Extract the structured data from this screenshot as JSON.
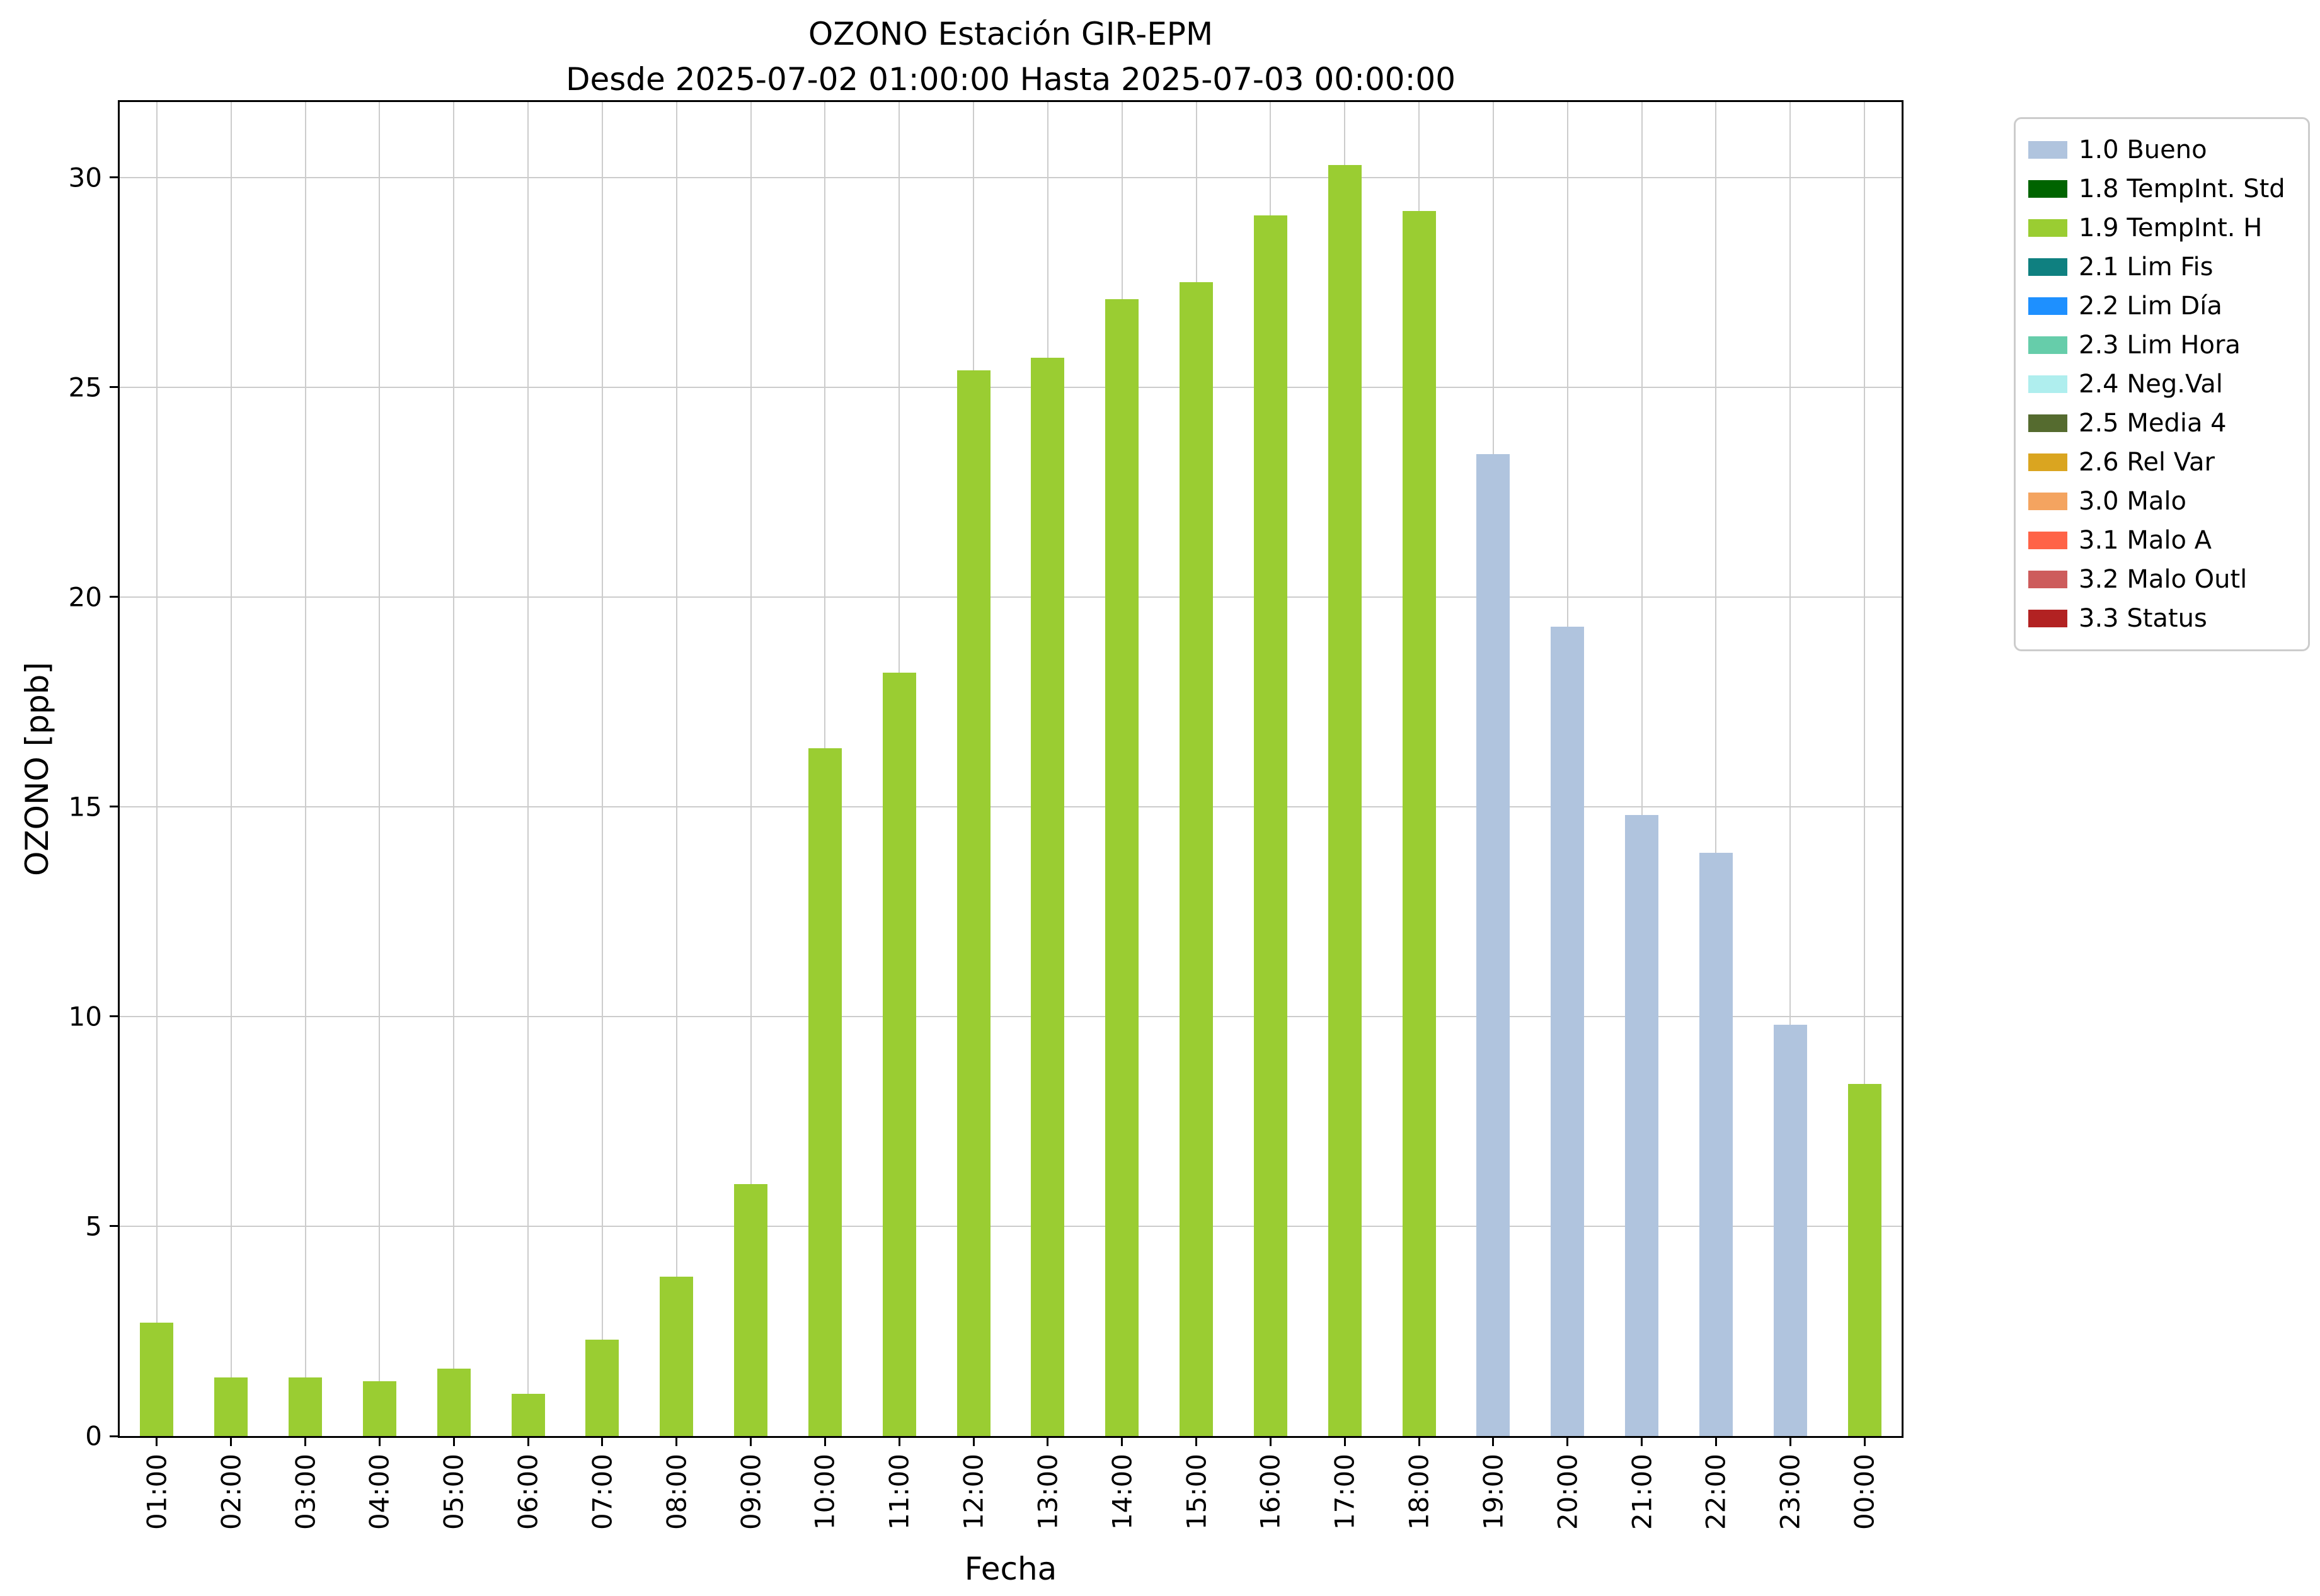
{
  "chart_data": {
    "type": "bar",
    "title": "OZONO Estación GIR-EPM",
    "subtitle": "Desde 2025-07-02 01:00:00 Hasta 2025-07-03 00:00:00",
    "xlabel": "Fecha",
    "ylabel": "OZONO [ppb]",
    "ylim": [
      0,
      31.8
    ],
    "yticks": [
      0,
      5,
      10,
      15,
      20,
      25,
      30
    ],
    "grid": true,
    "legend_position": "outside-top-right",
    "categories": [
      "01:00",
      "02:00",
      "03:00",
      "04:00",
      "05:00",
      "06:00",
      "07:00",
      "08:00",
      "09:00",
      "10:00",
      "11:00",
      "12:00",
      "13:00",
      "14:00",
      "15:00",
      "16:00",
      "17:00",
      "18:00",
      "19:00",
      "20:00",
      "21:00",
      "22:00",
      "23:00",
      "00:00"
    ],
    "values": [
      2.7,
      1.4,
      1.4,
      1.3,
      1.6,
      1.0,
      2.3,
      3.8,
      6.0,
      16.4,
      18.2,
      25.4,
      25.7,
      27.1,
      27.5,
      29.1,
      30.3,
      29.2,
      23.4,
      19.3,
      14.8,
      13.9,
      9.8,
      8.4
    ],
    "bar_flags": [
      "1.9",
      "1.9",
      "1.9",
      "1.9",
      "1.9",
      "1.9",
      "1.9",
      "1.9",
      "1.9",
      "1.9",
      "1.9",
      "1.9",
      "1.9",
      "1.9",
      "1.9",
      "1.9",
      "1.9",
      "1.9",
      "1.0",
      "1.0",
      "1.0",
      "1.0",
      "1.0",
      "1.9"
    ],
    "flag_colors": {
      "1.0": "#B0C4DE",
      "1.9": "#9ACD32"
    },
    "legend": [
      {
        "label": "1.0 Bueno",
        "color": "#B0C4DE"
      },
      {
        "label": "1.8 TempInt. Std",
        "color": "#006400"
      },
      {
        "label": "1.9 TempInt. H",
        "color": "#9ACD32"
      },
      {
        "label": "2.1 Lim Fis",
        "color": "#0F8080"
      },
      {
        "label": "2.2 Lim Día",
        "color": "#1E90FF"
      },
      {
        "label": "2.3 Lim Hora",
        "color": "#66CDAA"
      },
      {
        "label": "2.4 Neg.Val",
        "color": "#AFEEEE"
      },
      {
        "label": "2.5 Media 4",
        "color": "#556B2F"
      },
      {
        "label": "2.6 Rel Var",
        "color": "#DAA520"
      },
      {
        "label": "3.0 Malo",
        "color": "#F4A460"
      },
      {
        "label": "3.1 Malo A",
        "color": "#FF6347"
      },
      {
        "label": "3.2 Malo Outl",
        "color": "#CD5C5C"
      },
      {
        "label": "3.3 Status",
        "color": "#B22222"
      }
    ]
  }
}
